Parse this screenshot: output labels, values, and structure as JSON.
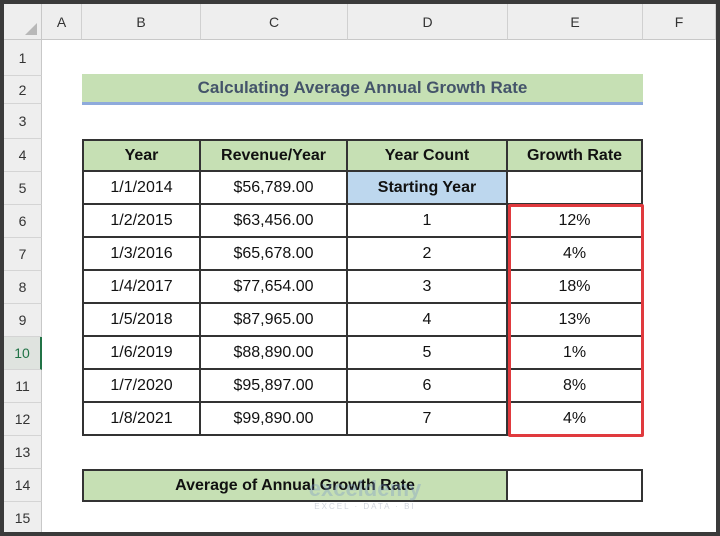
{
  "columns": [
    "A",
    "B",
    "C",
    "D",
    "E",
    "F"
  ],
  "rows": [
    "1",
    "2",
    "3",
    "4",
    "5",
    "6",
    "7",
    "8",
    "9",
    "10",
    "11",
    "12",
    "13",
    "14",
    "15"
  ],
  "selected_row": "10",
  "title": "Calculating Average Annual Growth Rate",
  "table": {
    "headers": [
      "Year",
      "Revenue/Year",
      "Year Count",
      "Growth Rate"
    ],
    "rows": [
      [
        "1/1/2014",
        "$56,789.00",
        "Starting Year",
        ""
      ],
      [
        "1/2/2015",
        "$63,456.00",
        "1",
        "12%"
      ],
      [
        "1/3/2016",
        "$65,678.00",
        "2",
        "4%"
      ],
      [
        "1/4/2017",
        "$77,654.00",
        "3",
        "18%"
      ],
      [
        "1/5/2018",
        "$87,965.00",
        "4",
        "13%"
      ],
      [
        "1/6/2019",
        "$88,890.00",
        "5",
        "1%"
      ],
      [
        "1/7/2020",
        "$95,897.00",
        "6",
        "8%"
      ],
      [
        "1/8/2021",
        "$99,890.00",
        "7",
        "4%"
      ]
    ]
  },
  "average": {
    "label": "Average of Annual Growth Rate",
    "value": ""
  },
  "watermark": {
    "brand": "exceldemy",
    "tagline": "EXCEL · DATA · BI"
  },
  "colors": {
    "header_green": "#c6e0b4",
    "starting_blue": "#bdd7ee",
    "highlight_red": "#e03a3e"
  }
}
